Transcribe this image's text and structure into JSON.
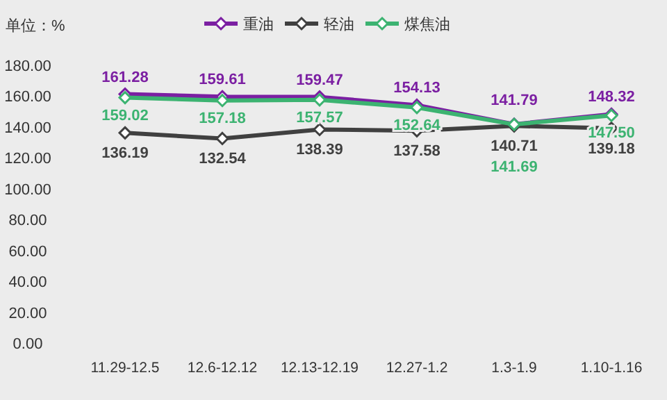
{
  "chart_data": {
    "type": "line",
    "ylabel": "单位：%",
    "categories": [
      "11.29-12.5",
      "12.6-12.12",
      "12.13-12.19",
      "12.27-1.2",
      "1.3-1.9",
      "1.10-1.16"
    ],
    "series": [
      {
        "name": "重油",
        "color": "#7b1fa2",
        "values": [
          161.28,
          159.61,
          159.47,
          154.13,
          141.79,
          148.32
        ],
        "value_labels": [
          "161.28",
          "159.61",
          "159.47",
          "154.13",
          "141.79",
          "148.32"
        ]
      },
      {
        "name": "轻油",
        "color": "#404040",
        "values": [
          136.19,
          132.54,
          138.39,
          137.58,
          140.71,
          139.18
        ],
        "value_labels": [
          "136.19",
          "132.54",
          "138.39",
          "137.58",
          "140.71",
          "139.18"
        ]
      },
      {
        "name": "煤焦油",
        "color": "#3cb371",
        "values": [
          159.02,
          157.18,
          157.57,
          152.64,
          141.69,
          147.5
        ],
        "value_labels": [
          "159.02",
          "157.18",
          "157.57",
          "152.64",
          "141.69",
          "147.50"
        ]
      }
    ],
    "ylim": [
      0,
      180
    ],
    "yticks": [
      {
        "value": 0,
        "label": "0.00"
      },
      {
        "value": 20,
        "label": "20.00"
      },
      {
        "value": 40,
        "label": "40.00"
      },
      {
        "value": 60,
        "label": "60.00"
      },
      {
        "value": 80,
        "label": "80.00"
      },
      {
        "value": 100,
        "label": "100.00"
      },
      {
        "value": 120,
        "label": "120.00"
      },
      {
        "value": 140,
        "label": "140.00"
      },
      {
        "value": 160,
        "label": "160.00"
      },
      {
        "value": 180,
        "label": "180.00"
      }
    ],
    "grid": false,
    "legend": "top",
    "marker": "diamond",
    "line_style": "solid"
  }
}
